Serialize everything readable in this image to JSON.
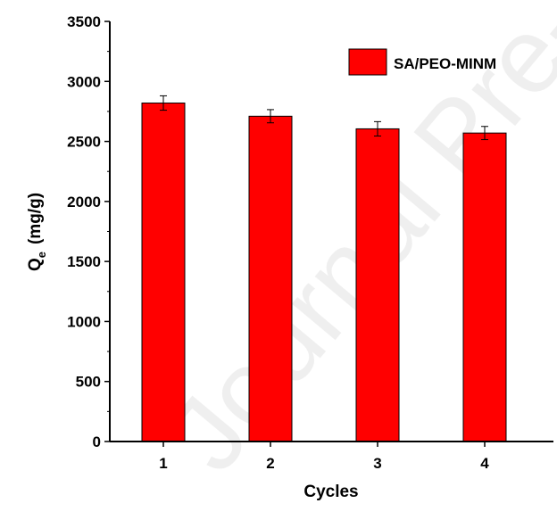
{
  "watermark": "Journal Pre-proof",
  "chart_data": {
    "type": "bar",
    "categories": [
      "1",
      "2",
      "3",
      "4"
    ],
    "series": [
      {
        "name": "SA/PEO-MINM",
        "values": [
          2820,
          2710,
          2605,
          2570
        ],
        "errors": [
          60,
          55,
          60,
          55
        ],
        "color": "#ff0000"
      }
    ],
    "xlabel": "Cycles",
    "ylabel": "Q",
    "ylabel_sub": "e",
    "ylabel_unit": "(mg/g)",
    "ylim": [
      0,
      3500
    ],
    "yticks": [
      0,
      500,
      1000,
      1500,
      2000,
      2500,
      3000,
      3500
    ],
    "grid": false,
    "legend_position": "top-right"
  }
}
